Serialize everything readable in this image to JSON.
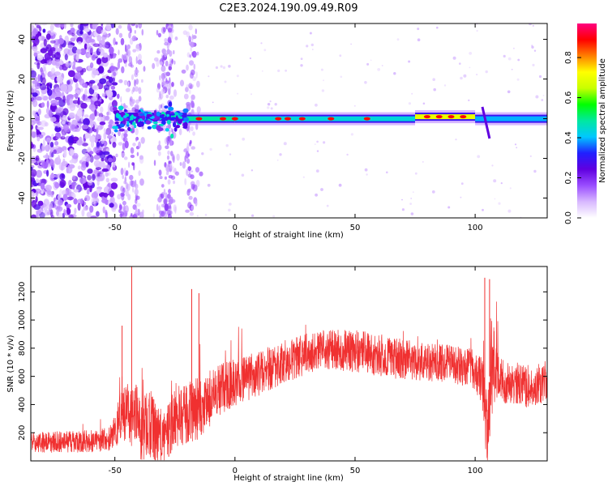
{
  "title": "C2E3.2024.190.09.49.R09",
  "chart_data": [
    {
      "type": "heatmap",
      "xlabel": "Height of straight line (km)",
      "ylabel": "Frequency (Hz)",
      "xlim": [
        -85,
        130
      ],
      "ylim": [
        -50,
        48
      ],
      "xticks": [
        -50,
        0,
        50,
        100
      ],
      "yticks": [
        -40,
        -20,
        0,
        20,
        40
      ],
      "colorbar": {
        "label": "Normalized spectral amplitude",
        "range": [
          0,
          0.97
        ],
        "ticks": [
          0.0,
          0.2,
          0.4,
          0.6,
          0.8
        ],
        "colormap": [
          "#ffffff",
          "#d8b8ff",
          "#9a4dff",
          "#6000e0",
          "#2020ff",
          "#00c8ff",
          "#00e8a0",
          "#00ff00",
          "#c8ff00",
          "#ffff00",
          "#ff8000",
          "#ff0000",
          "#ff0080"
        ]
      },
      "ridge": {
        "segments": [
          {
            "x_start": -50,
            "x_end": -20,
            "frequency": 1,
            "amplitude": 0.35
          },
          {
            "x_start": -20,
            "x_end": 0,
            "frequency": 0,
            "amplitude": 0.55
          },
          {
            "x_start": 0,
            "x_end": 75,
            "frequency": 0,
            "amplitude": 0.5
          },
          {
            "x_start": 75,
            "x_end": 100,
            "frequency": 1,
            "amplitude": 0.8
          },
          {
            "x_start": 100,
            "x_end": 130,
            "frequency": 0,
            "amplitude": 0.45
          }
        ],
        "hot_spots": [
          -15,
          -5,
          0,
          18,
          22,
          28,
          40,
          55,
          80,
          85,
          90,
          95
        ]
      },
      "noise_region": {
        "x_start": -85,
        "x_end": -50
      }
    },
    {
      "type": "line",
      "xlabel": "Height of straight line (km)",
      "ylabel": "SNR (10 * v/v)",
      "xlim": [
        -85,
        130
      ],
      "ylim": [
        0,
        1380
      ],
      "xticks": [
        -50,
        0,
        50,
        100
      ],
      "yticks": [
        200,
        400,
        600,
        800,
        1000,
        1200
      ],
      "color": "#f03030",
      "envelope": {
        "x": [
          -85,
          -60,
          -52,
          -48,
          -45,
          -40,
          -35,
          -30,
          -25,
          -20,
          -15,
          -10,
          -5,
          0,
          10,
          20,
          30,
          40,
          50,
          60,
          70,
          80,
          90,
          100,
          103,
          105,
          106,
          108,
          110,
          115,
          120,
          125,
          130
        ],
        "mean": [
          130,
          140,
          160,
          300,
          380,
          280,
          250,
          160,
          300,
          340,
          380,
          450,
          520,
          560,
          620,
          700,
          760,
          790,
          780,
          750,
          720,
          700,
          690,
          650,
          560,
          200,
          600,
          680,
          580,
          540,
          530,
          540,
          560
        ],
        "spread": [
          80,
          90,
          100,
          200,
          250,
          300,
          280,
          200,
          250,
          250,
          250,
          220,
          200,
          190,
          180,
          170,
          160,
          160,
          170,
          170,
          160,
          150,
          150,
          160,
          200,
          300,
          500,
          300,
          180,
          170,
          170,
          170,
          170
        ]
      },
      "spikes": [
        {
          "x": -43,
          "y": 1380
        },
        {
          "x": -47,
          "y": 960
        },
        {
          "x": -18,
          "y": 1220
        },
        {
          "x": -15,
          "y": 1190
        },
        {
          "x": 104,
          "y": 1300
        },
        {
          "x": 106,
          "y": 1290
        },
        {
          "x": 105,
          "y": 20
        }
      ]
    }
  ]
}
